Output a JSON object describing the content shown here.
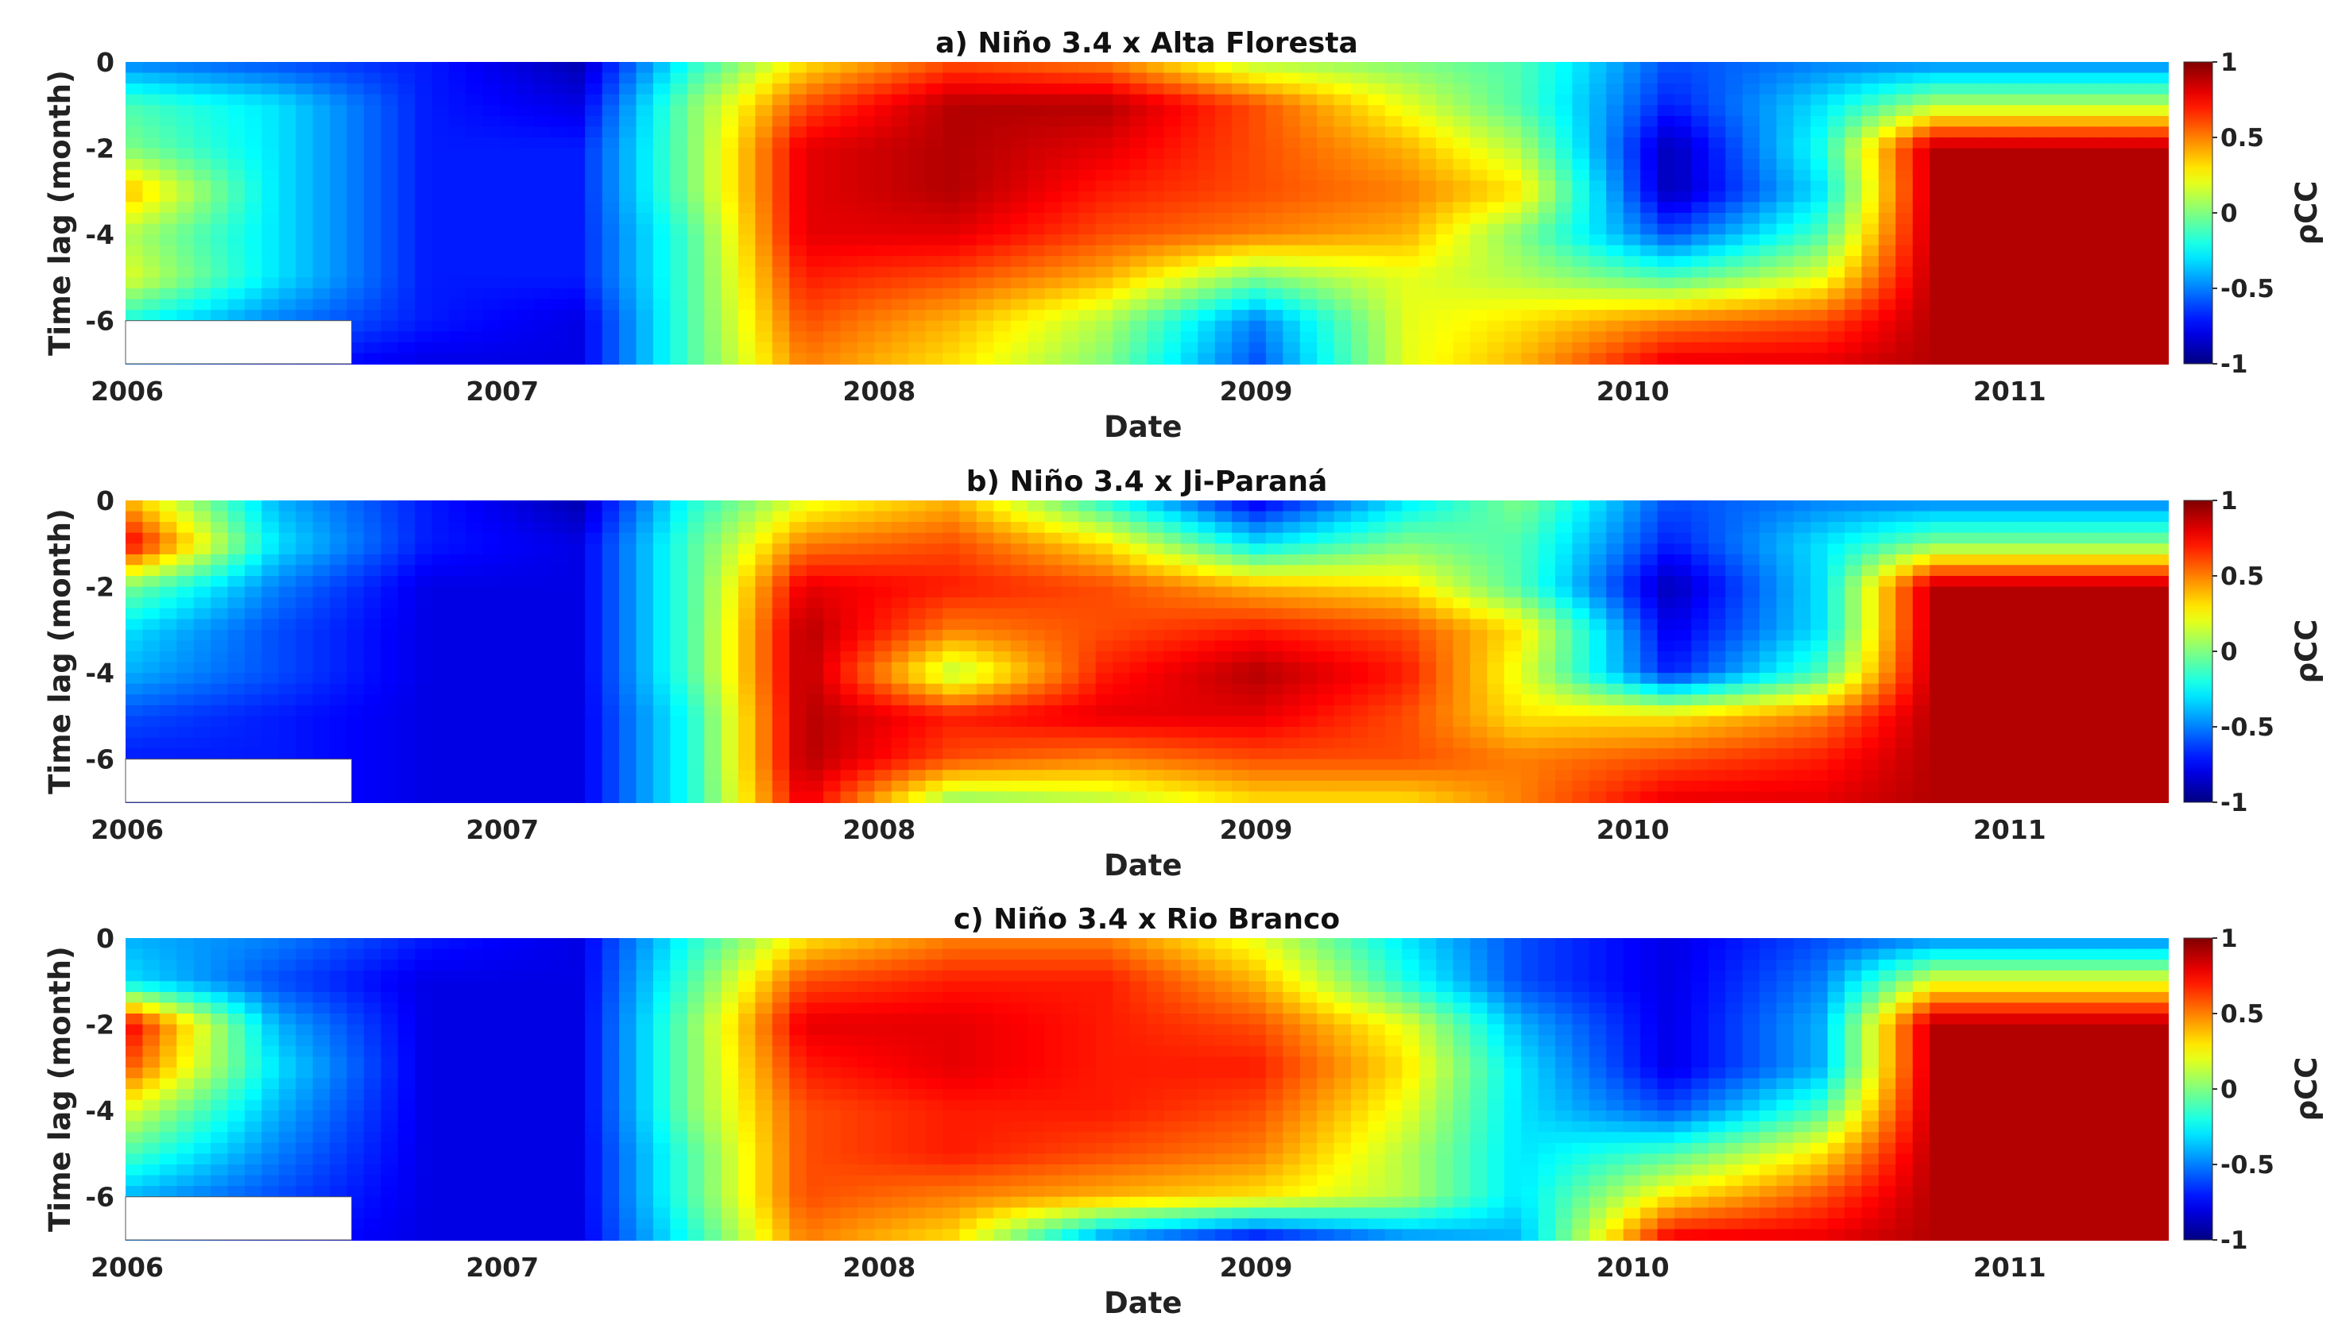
{
  "chart_data": [
    {
      "type": "heatmap",
      "title": "a) Niño 3.4 x Alta Floresta",
      "xlabel": "Date",
      "ylabel": "Time lag (month)",
      "xticks": [
        "2006",
        "2007",
        "2008",
        "2009",
        "2010",
        "2011"
      ],
      "xlim": [
        2006.0,
        2011.42
      ],
      "yticks": [
        "0",
        "-2",
        "-4",
        "-6"
      ],
      "ylim": [
        -7,
        0
      ],
      "colorbar": {
        "label": "ρCC",
        "ticks": [
          "1",
          "0.5",
          "0",
          "-0.5",
          "-1"
        ],
        "range": [
          -1,
          1
        ],
        "colormap": "jet"
      },
      "lags": [
        0,
        -1,
        -2,
        -3,
        -4,
        -5,
        -6,
        -7
      ],
      "time_points": [
        2006.0,
        2006.4,
        2006.8,
        2007.2,
        2007.5,
        2007.8,
        2008.2,
        2008.6,
        2009.0,
        2009.4,
        2009.7,
        2010.1,
        2010.5,
        2010.8,
        2011.1,
        2011.42
      ],
      "values": [
        [
          -0.5,
          -0.6,
          -0.7,
          -0.9,
          -0.2,
          0.3,
          0.6,
          0.5,
          0.1,
          0.0,
          -0.1,
          -0.6,
          -0.5,
          -0.5,
          -0.5,
          -0.5
        ],
        [
          -0.1,
          -0.3,
          -0.7,
          -0.8,
          0.0,
          0.6,
          0.9,
          0.9,
          0.6,
          0.2,
          -0.1,
          -0.7,
          -0.3,
          0.1,
          0.1,
          0.1
        ],
        [
          0.0,
          -0.3,
          -0.7,
          -0.7,
          0.0,
          0.8,
          0.9,
          0.8,
          0.6,
          0.4,
          0.1,
          -0.9,
          -0.2,
          0.9,
          0.9,
          0.9
        ],
        [
          0.4,
          -0.3,
          -0.7,
          -0.7,
          0.0,
          0.8,
          0.9,
          0.7,
          0.6,
          0.5,
          0.3,
          -0.9,
          -0.3,
          0.9,
          0.9,
          0.9
        ],
        [
          0.1,
          -0.3,
          -0.7,
          -0.7,
          -0.1,
          0.8,
          0.8,
          0.6,
          0.5,
          0.4,
          0.0,
          -0.6,
          -0.1,
          0.9,
          0.9,
          0.9
        ],
        [
          0.2,
          -0.3,
          -0.7,
          -0.7,
          -0.1,
          0.7,
          0.6,
          0.4,
          0.0,
          0.2,
          0.1,
          -0.1,
          0.2,
          0.9,
          0.9,
          0.9
        ],
        [
          -0.2,
          -0.5,
          -0.7,
          -0.8,
          -0.1,
          0.6,
          0.4,
          0.1,
          -0.5,
          0.2,
          0.3,
          0.5,
          0.6,
          0.9,
          0.9,
          0.9
        ],
        [
          -0.5,
          -0.7,
          -0.8,
          -0.8,
          -0.1,
          0.5,
          0.3,
          0.0,
          -0.6,
          0.2,
          0.4,
          0.8,
          0.8,
          0.9,
          0.9,
          0.9
        ]
      ]
    },
    {
      "type": "heatmap",
      "title": "b) Niño 3.4 x Ji-Paraná",
      "xlabel": "Date",
      "ylabel": "Time lag (month)",
      "xticks": [
        "2006",
        "2007",
        "2008",
        "2009",
        "2010",
        "2011"
      ],
      "xlim": [
        2006.0,
        2011.42
      ],
      "yticks": [
        "0",
        "-2",
        "-4",
        "-6"
      ],
      "ylim": [
        -7,
        0
      ],
      "colorbar": {
        "label": "ρCC",
        "ticks": [
          "1",
          "0.5",
          "0",
          "-0.5",
          "-1"
        ],
        "range": [
          -1,
          1
        ],
        "colormap": "jet"
      },
      "lags": [
        0,
        -1,
        -2,
        -3,
        -4,
        -5,
        -6,
        -7
      ],
      "time_points": [
        2006.0,
        2006.4,
        2006.8,
        2007.2,
        2007.5,
        2007.8,
        2008.2,
        2008.6,
        2009.0,
        2009.4,
        2009.7,
        2010.1,
        2010.5,
        2010.8,
        2011.1,
        2011.42
      ],
      "values": [
        [
          0.4,
          -0.4,
          -0.7,
          -0.9,
          -0.2,
          0.2,
          0.4,
          -0.2,
          -0.8,
          -0.3,
          0.0,
          -0.6,
          -0.5,
          -0.5,
          -0.5,
          -0.5
        ],
        [
          0.8,
          -0.3,
          -0.7,
          -0.8,
          -0.1,
          0.5,
          0.6,
          0.3,
          -0.3,
          0.0,
          -0.1,
          -0.7,
          -0.3,
          0.0,
          0.0,
          0.0
        ],
        [
          0.0,
          -0.5,
          -0.8,
          -0.8,
          -0.1,
          0.8,
          0.7,
          0.6,
          0.4,
          0.3,
          -0.1,
          -0.9,
          -0.3,
          0.9,
          0.9,
          0.9
        ],
        [
          -0.3,
          -0.6,
          -0.8,
          -0.8,
          -0.1,
          0.9,
          0.5,
          0.6,
          0.7,
          0.6,
          0.3,
          -0.8,
          -0.3,
          0.9,
          0.9,
          0.9
        ],
        [
          -0.4,
          -0.6,
          -0.8,
          -0.8,
          -0.1,
          0.9,
          0.1,
          0.7,
          0.9,
          0.7,
          0.2,
          -0.7,
          -0.1,
          0.9,
          0.9,
          0.9
        ],
        [
          -0.6,
          -0.7,
          -0.8,
          -0.8,
          -0.2,
          0.9,
          0.7,
          0.8,
          0.8,
          0.6,
          0.3,
          0.3,
          0.5,
          0.9,
          0.9,
          0.9
        ],
        [
          -0.7,
          -0.7,
          -0.8,
          -0.8,
          -0.2,
          0.9,
          0.6,
          0.5,
          0.6,
          0.6,
          0.5,
          0.6,
          0.7,
          0.9,
          0.9,
          0.9
        ],
        [
          -0.7,
          -0.7,
          -0.8,
          -0.8,
          -0.2,
          0.8,
          0.0,
          0.1,
          0.3,
          0.3,
          0.5,
          0.8,
          0.8,
          0.9,
          0.9,
          0.9
        ]
      ]
    },
    {
      "type": "heatmap",
      "title": "c) Niño 3.4 x Rio Branco",
      "xlabel": "Date",
      "ylabel": "Time lag (month)",
      "xticks": [
        "2006",
        "2007",
        "2008",
        "2009",
        "2010",
        "2011"
      ],
      "xlim": [
        2006.0,
        2011.42
      ],
      "yticks": [
        "0",
        "-2",
        "-4",
        "-6"
      ],
      "ylim": [
        -7,
        0
      ],
      "colorbar": {
        "label": "ρCC",
        "ticks": [
          "1",
          "0.5",
          "0",
          "-0.5",
          "-1"
        ],
        "range": [
          -1,
          1
        ],
        "colormap": "jet"
      },
      "lags": [
        0,
        -1,
        -2,
        -3,
        -4,
        -5,
        -6,
        -7
      ],
      "time_points": [
        2006.0,
        2006.4,
        2006.8,
        2007.2,
        2007.5,
        2007.8,
        2008.2,
        2008.6,
        2009.0,
        2009.4,
        2009.7,
        2010.1,
        2010.5,
        2010.8,
        2011.1,
        2011.42
      ],
      "values": [
        [
          -0.4,
          -0.5,
          -0.7,
          -0.8,
          -0.2,
          0.3,
          0.5,
          0.5,
          0.2,
          -0.3,
          -0.6,
          -0.8,
          -0.6,
          -0.5,
          -0.5,
          -0.5
        ],
        [
          -0.3,
          -0.6,
          -0.8,
          -0.8,
          -0.1,
          0.6,
          0.7,
          0.7,
          0.4,
          -0.2,
          -0.6,
          -0.8,
          -0.5,
          0.2,
          0.2,
          0.2
        ],
        [
          0.8,
          -0.4,
          -0.8,
          -0.8,
          0.0,
          0.8,
          0.8,
          0.7,
          0.6,
          0.2,
          -0.4,
          -0.8,
          -0.4,
          0.9,
          0.9,
          0.9
        ],
        [
          0.6,
          -0.3,
          -0.8,
          -0.8,
          0.0,
          0.7,
          0.8,
          0.7,
          0.7,
          0.3,
          -0.3,
          -0.8,
          -0.4,
          0.9,
          0.9,
          0.9
        ],
        [
          0.2,
          -0.4,
          -0.8,
          -0.8,
          0.0,
          0.6,
          0.7,
          0.7,
          0.6,
          0.2,
          -0.3,
          -0.6,
          -0.1,
          0.9,
          0.9,
          0.9
        ],
        [
          -0.1,
          -0.5,
          -0.8,
          -0.8,
          -0.1,
          0.6,
          0.7,
          0.6,
          0.5,
          0.1,
          -0.3,
          -0.1,
          0.3,
          0.9,
          0.9,
          0.9
        ],
        [
          -0.4,
          -0.6,
          -0.8,
          -0.8,
          -0.1,
          0.6,
          0.5,
          0.4,
          0.3,
          0.1,
          -0.3,
          0.3,
          0.6,
          0.9,
          0.9,
          0.9
        ],
        [
          -0.5,
          -0.7,
          -0.8,
          -0.8,
          -0.2,
          0.5,
          0.3,
          -0.5,
          -0.8,
          -0.5,
          -0.4,
          0.8,
          0.8,
          0.9,
          0.9,
          0.9
        ]
      ]
    }
  ]
}
